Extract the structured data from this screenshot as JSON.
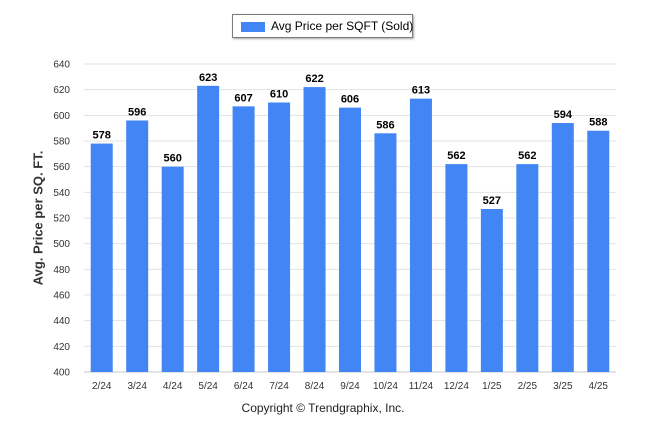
{
  "chart_data": {
    "type": "bar",
    "legend": "Avg Price per SQFT (Sold)",
    "legend_position": "top-center",
    "ylabel": "Avg. Price per SQ. FT.",
    "xlabel": "",
    "ylim": [
      400,
      640
    ],
    "yticks": [
      400,
      420,
      440,
      460,
      480,
      500,
      520,
      540,
      560,
      580,
      600,
      620,
      640
    ],
    "grid": true,
    "categories": [
      "2/24",
      "3/24",
      "4/24",
      "5/24",
      "6/24",
      "7/24",
      "8/24",
      "9/24",
      "10/24",
      "11/24",
      "12/24",
      "1/25",
      "2/25",
      "3/25",
      "4/25"
    ],
    "values": [
      578,
      596,
      560,
      623,
      607,
      610,
      622,
      606,
      586,
      613,
      562,
      527,
      562,
      594,
      588
    ],
    "bar_color": "#4285f4"
  },
  "footer": {
    "copyright": "Copyright © Trendgraphix, Inc."
  }
}
